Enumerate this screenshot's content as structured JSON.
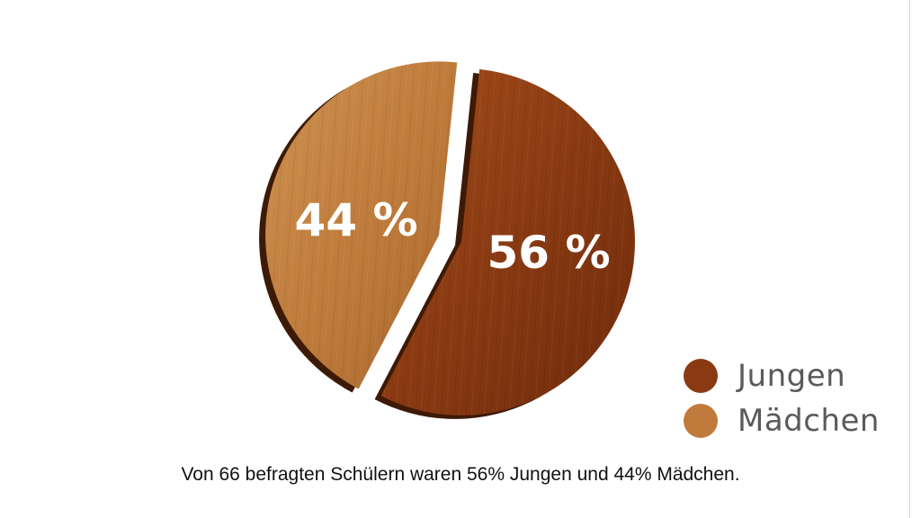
{
  "chart_data": {
    "type": "pie",
    "title": "",
    "slices": [
      {
        "name": "Jungen",
        "value": 56,
        "label": "56 %",
        "color": "#8a3a12"
      },
      {
        "name": "Mädchen",
        "value": 44,
        "label": "44 %",
        "color": "#c07a3c"
      }
    ],
    "legend_position": "bottom-right"
  },
  "legend": {
    "items": [
      {
        "label": "Jungen",
        "color": "#8a3a12"
      },
      {
        "label": "Mädchen",
        "color": "#c07a3c"
      }
    ]
  },
  "caption": "Von 66 befragten Schülern waren 56% Jungen und 44% Mädchen."
}
